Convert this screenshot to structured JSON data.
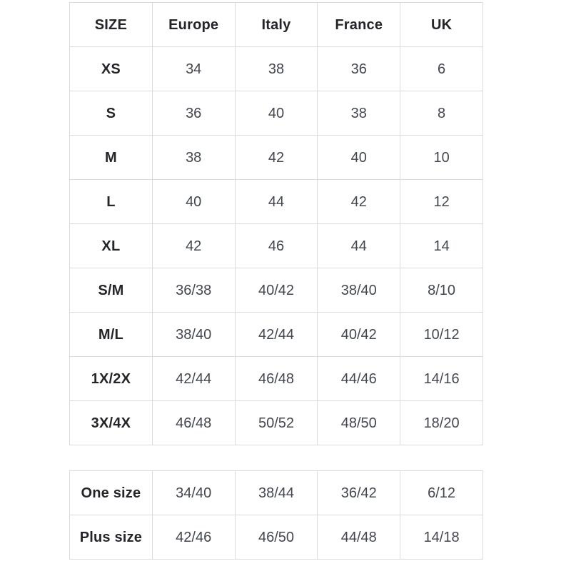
{
  "colors": {
    "border": "#dcdcdc",
    "header_text": "#232529",
    "value_text": "#43474e",
    "background": "#ffffff"
  },
  "main_table": {
    "columns": [
      "SIZE",
      "Europe",
      "Italy",
      "France",
      "UK"
    ],
    "rows": [
      [
        "XS",
        "34",
        "38",
        "36",
        "6"
      ],
      [
        "S",
        "36",
        "40",
        "38",
        "8"
      ],
      [
        "M",
        "38",
        "42",
        "40",
        "10"
      ],
      [
        "L",
        "40",
        "44",
        "42",
        "12"
      ],
      [
        "XL",
        "42",
        "46",
        "44",
        "14"
      ],
      [
        "S/M",
        "36/38",
        "40/42",
        "38/40",
        "8/10"
      ],
      [
        "M/L",
        "38/40",
        "42/44",
        "40/42",
        "10/12"
      ],
      [
        "1X/2X",
        "42/44",
        "46/48",
        "44/46",
        "14/16"
      ],
      [
        "3X/4X",
        "46/48",
        "50/52",
        "48/50",
        "18/20"
      ]
    ]
  },
  "extra_table": {
    "rows": [
      [
        "One size",
        "34/40",
        "38/44",
        "36/42",
        "6/12"
      ],
      [
        "Plus size",
        "42/46",
        "46/50",
        "44/48",
        "14/18"
      ]
    ]
  },
  "chart_data": [
    {
      "type": "table",
      "title": "",
      "columns": [
        "SIZE",
        "Europe",
        "Italy",
        "France",
        "UK"
      ],
      "rows": [
        [
          "XS",
          "34",
          "38",
          "36",
          "6"
        ],
        [
          "S",
          "36",
          "40",
          "38",
          "8"
        ],
        [
          "M",
          "38",
          "42",
          "40",
          "10"
        ],
        [
          "L",
          "40",
          "44",
          "42",
          "12"
        ],
        [
          "XL",
          "42",
          "46",
          "44",
          "14"
        ],
        [
          "S/M",
          "36/38",
          "40/42",
          "38/40",
          "8/10"
        ],
        [
          "M/L",
          "38/40",
          "42/44",
          "40/42",
          "10/12"
        ],
        [
          "1X/2X",
          "42/44",
          "46/48",
          "44/46",
          "14/16"
        ],
        [
          "3X/4X",
          "46/48",
          "50/52",
          "48/50",
          "18/20"
        ]
      ]
    },
    {
      "type": "table",
      "title": "",
      "columns": [],
      "rows": [
        [
          "One size",
          "34/40",
          "38/44",
          "36/42",
          "6/12"
        ],
        [
          "Plus size",
          "42/46",
          "46/50",
          "44/48",
          "14/18"
        ]
      ]
    }
  ]
}
